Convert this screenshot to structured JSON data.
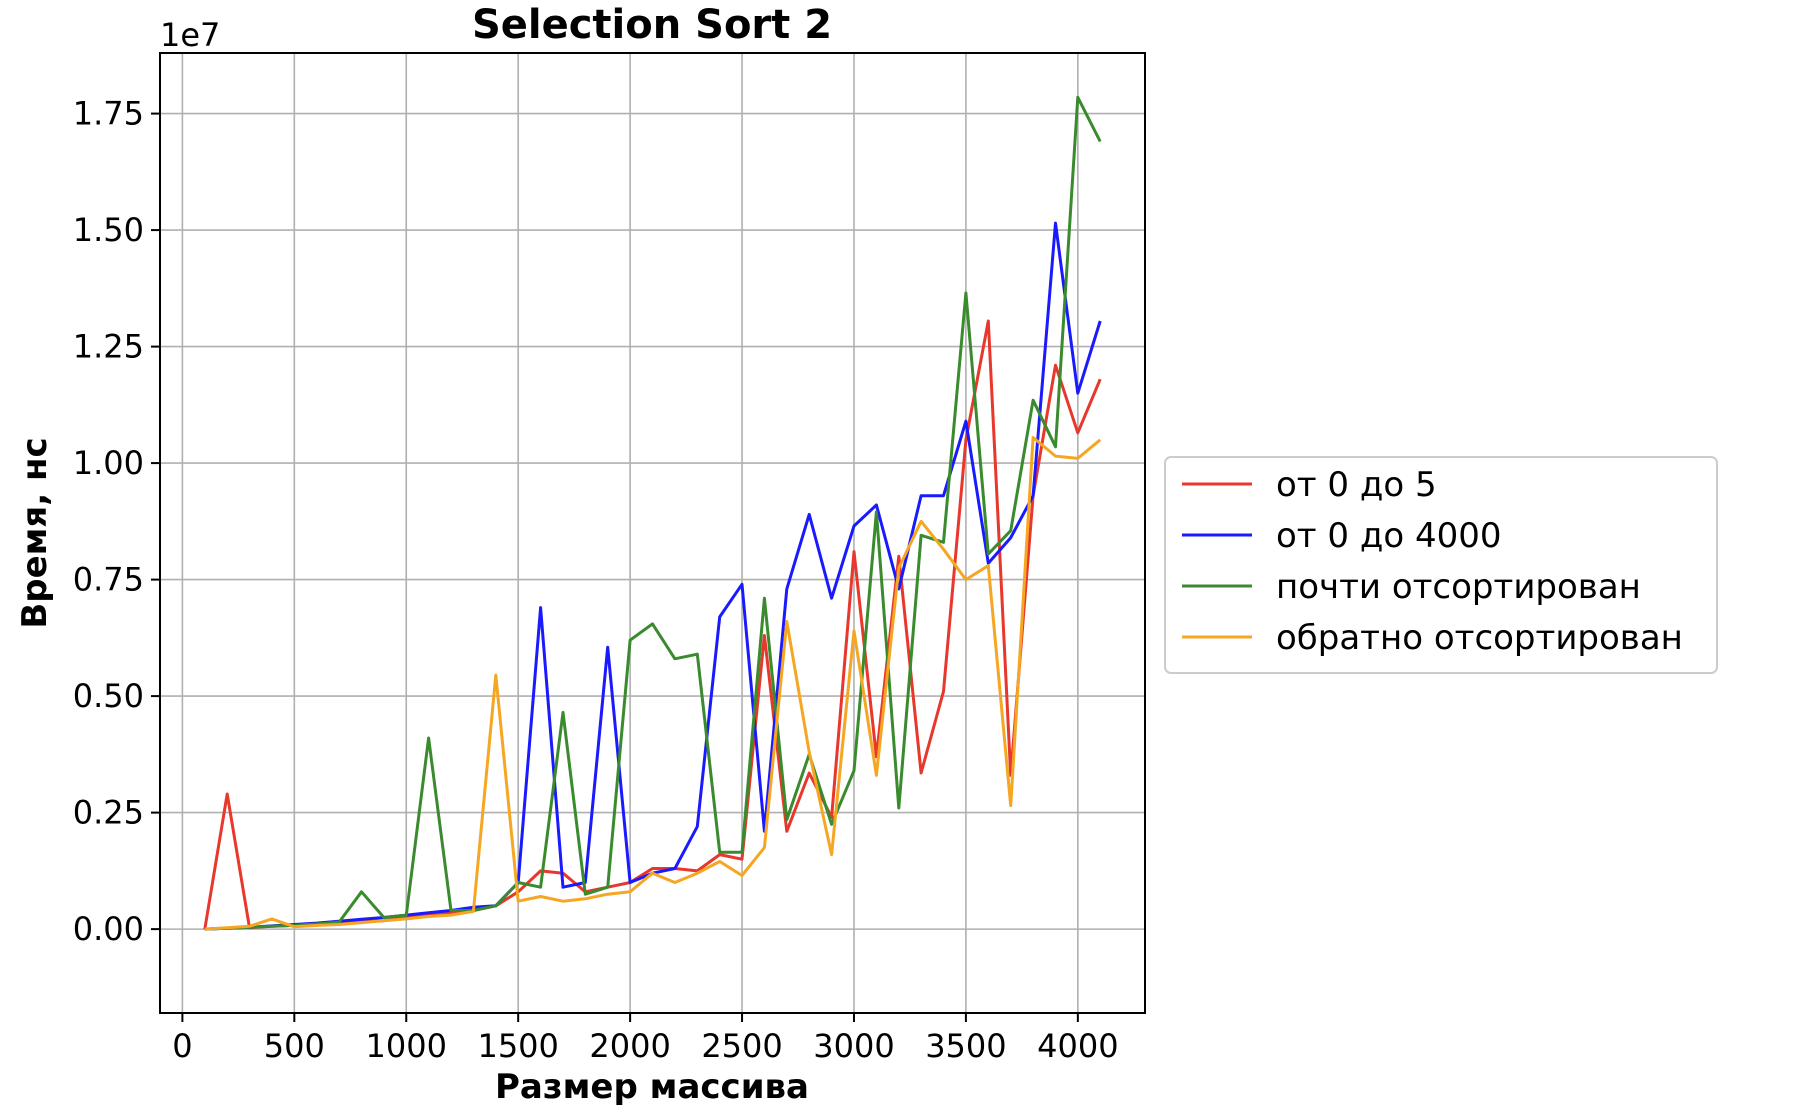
{
  "chart_data": {
    "type": "line",
    "title": "Selection Sort 2",
    "xlabel": "Размер массива",
    "ylabel": "Время, нс",
    "y_offset_label": "1e7",
    "xlim": [
      -100,
      4300
    ],
    "ylim": [
      -0.18,
      1.88
    ],
    "y_scale_note": "values in units of 1e7",
    "xticks": [
      0,
      500,
      1000,
      1500,
      2000,
      2500,
      3000,
      3500,
      4000
    ],
    "xtick_labels": [
      "0",
      "500",
      "1000",
      "1500",
      "2000",
      "2500",
      "3000",
      "3500",
      "4000"
    ],
    "yticks": [
      0.0,
      0.25,
      0.5,
      0.75,
      1.0,
      1.25,
      1.5,
      1.75
    ],
    "ytick_labels": [
      "0.00",
      "0.25",
      "0.50",
      "0.75",
      "1.00",
      "1.25",
      "1.50",
      "1.75"
    ],
    "grid": true,
    "legend_position": "right",
    "x": [
      100,
      200,
      300,
      400,
      500,
      600,
      700,
      800,
      900,
      1000,
      1100,
      1200,
      1300,
      1400,
      1500,
      1600,
      1700,
      1800,
      1900,
      2000,
      2100,
      2200,
      2300,
      2400,
      2500,
      2600,
      2700,
      2800,
      2900,
      3000,
      3100,
      3200,
      3300,
      3400,
      3500,
      3600,
      3700,
      3800,
      3900,
      4000,
      4100
    ],
    "series": [
      {
        "name": "от 0 до 5",
        "color": "#e8372c",
        "values": [
          0.0,
          0.29,
          0.003,
          0.006,
          0.008,
          0.01,
          0.013,
          0.016,
          0.018,
          0.025,
          0.03,
          0.035,
          0.04,
          0.05,
          0.08,
          0.125,
          0.12,
          0.08,
          0.09,
          0.1,
          0.13,
          0.13,
          0.125,
          0.16,
          0.15,
          0.63,
          0.21,
          0.335,
          0.24,
          0.81,
          0.37,
          0.8,
          0.335,
          0.51,
          1.05,
          1.305,
          0.33,
          0.93,
          1.21,
          1.065,
          1.18
        ]
      },
      {
        "name": "от 0 до 4000",
        "color": "#1a1aff",
        "values": [
          0.0,
          0.002,
          0.004,
          0.007,
          0.01,
          0.013,
          0.017,
          0.021,
          0.025,
          0.03,
          0.035,
          0.04,
          0.047,
          0.05,
          0.1,
          0.69,
          0.09,
          0.1,
          0.605,
          0.1,
          0.12,
          0.13,
          0.22,
          0.67,
          0.74,
          0.21,
          0.73,
          0.89,
          0.71,
          0.865,
          0.91,
          0.73,
          0.93,
          0.93,
          1.09,
          0.785,
          0.84,
          0.93,
          1.515,
          1.15,
          1.305
        ]
      },
      {
        "name": "почти отсортирован",
        "color": "#3a8a2e",
        "values": [
          0.0,
          0.002,
          0.004,
          0.006,
          0.008,
          0.011,
          0.015,
          0.08,
          0.025,
          0.03,
          0.41,
          0.04,
          0.04,
          0.05,
          0.1,
          0.09,
          0.465,
          0.075,
          0.09,
          0.62,
          0.655,
          0.58,
          0.59,
          0.165,
          0.165,
          0.71,
          0.235,
          0.375,
          0.225,
          0.34,
          0.895,
          0.26,
          0.845,
          0.83,
          1.365,
          0.805,
          0.855,
          1.135,
          1.035,
          1.785,
          1.69
        ]
      },
      {
        "name": "обратно отсортирован",
        "color": "#f5a623",
        "values": [
          0.0,
          0.003,
          0.006,
          0.022,
          0.005,
          0.008,
          0.01,
          0.014,
          0.018,
          0.022,
          0.027,
          0.03,
          0.038,
          0.545,
          0.06,
          0.07,
          0.06,
          0.065,
          0.075,
          0.08,
          0.12,
          0.1,
          0.12,
          0.145,
          0.115,
          0.175,
          0.66,
          0.38,
          0.16,
          0.64,
          0.33,
          0.775,
          0.875,
          0.815,
          0.75,
          0.78,
          0.265,
          1.055,
          1.015,
          1.01,
          1.05
        ]
      }
    ]
  }
}
